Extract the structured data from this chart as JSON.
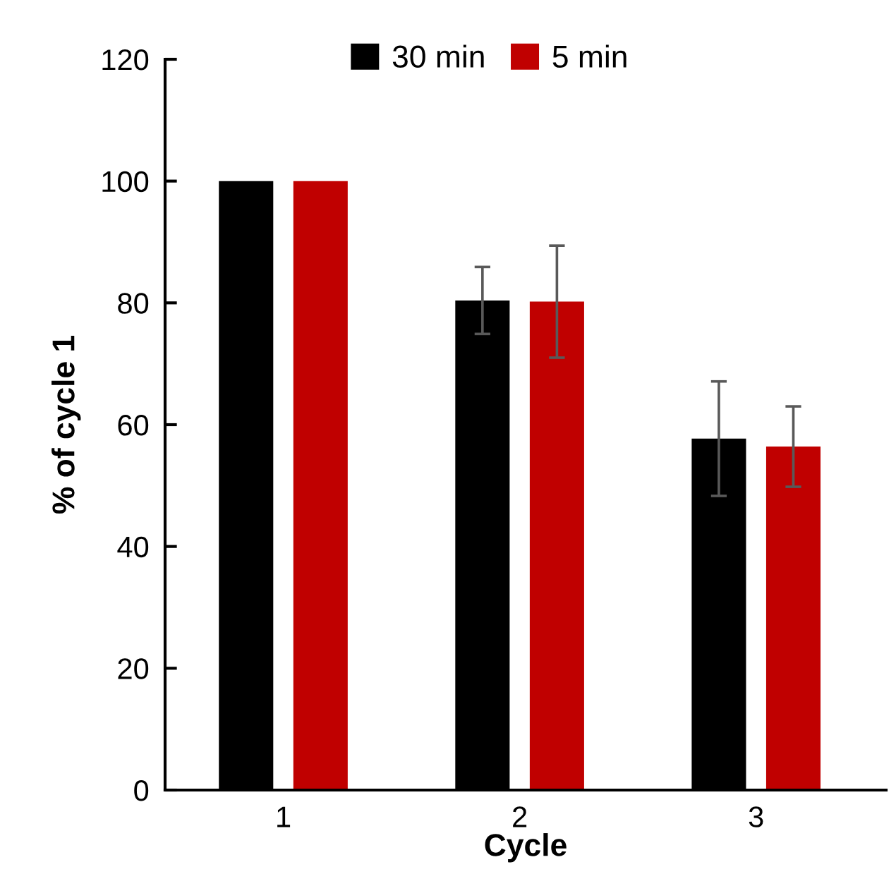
{
  "chart_data": {
    "type": "bar",
    "xlabel": "Cycle",
    "ylabel": "% of cycle 1",
    "categories": [
      "1",
      "2",
      "3"
    ],
    "series": [
      {
        "name": "30 min",
        "color": "#000000",
        "values": [
          100,
          80.4,
          57.7
        ],
        "errors": [
          null,
          5.5,
          9.4
        ]
      },
      {
        "name": "5 min",
        "color": "#c00000",
        "values": [
          100,
          80.2,
          56.4
        ],
        "errors": [
          null,
          9.2,
          6.6
        ]
      }
    ],
    "ylim": [
      0,
      120
    ],
    "yticks": [
      0,
      20,
      40,
      60,
      80,
      100,
      120
    ],
    "grid": false,
    "legend": "top"
  }
}
